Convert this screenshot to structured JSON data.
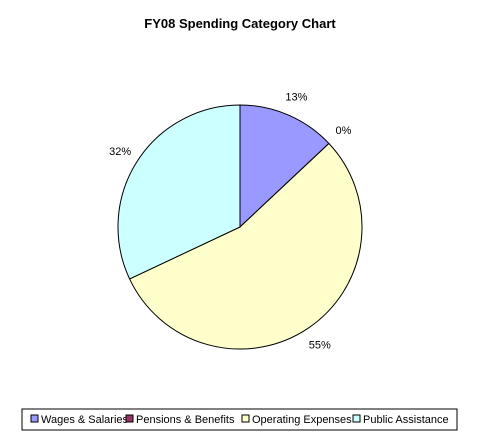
{
  "chart_data": {
    "type": "pie",
    "title": "FY08 Spending Category Chart",
    "categories": [
      "Wages & Salaries",
      "Pensions & Benefits",
      "Operating Expenses",
      "Public Assistance"
    ],
    "values": [
      13,
      0,
      55,
      32
    ],
    "data_labels": [
      "13%",
      "0%",
      "55%",
      "32%"
    ],
    "colors": [
      "#9999ff",
      "#993366",
      "#ffffcc",
      "#ccffff"
    ],
    "outline_color": "#000000",
    "start_angle_deg": 0,
    "direction": "clockwise",
    "legend_position": "bottom"
  }
}
